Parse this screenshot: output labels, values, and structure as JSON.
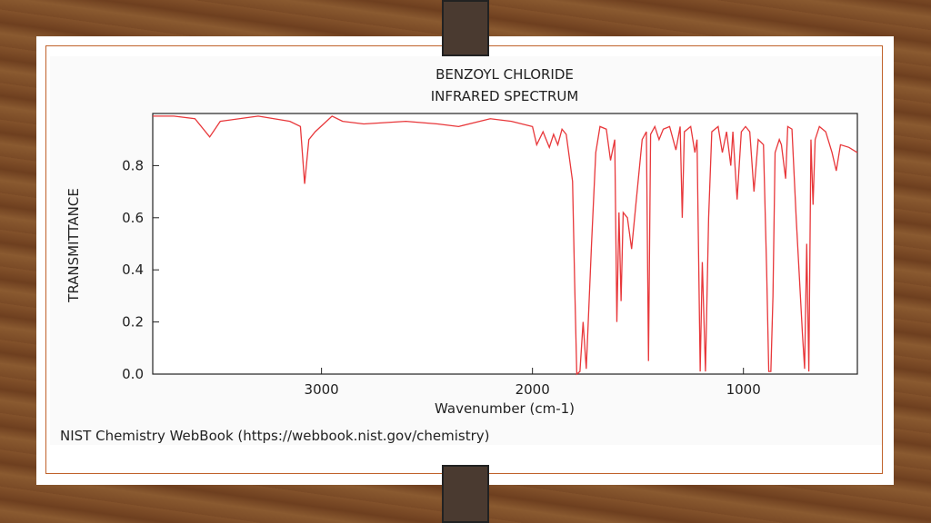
{
  "chart_data": {
    "type": "line",
    "title": "BENZOYL CHLORIDE",
    "subtitle": "INFRARED SPECTRUM",
    "x_label": "Wavenumber (cm-1)",
    "y_label": "TRANSMITTANCE",
    "caption": "NIST Chemistry WebBook (https://webbook.nist.gov/chemistry)",
    "xlim": [
      3800,
      460
    ],
    "ylim": [
      0,
      1.0
    ],
    "xticks": [
      3000,
      2000,
      1000
    ],
    "yticks": [
      {
        "value": 0,
        "label": "0.0"
      },
      0.2,
      0.4,
      0.6,
      0.8
    ],
    "x": [
      3800,
      3700,
      3600,
      3530,
      3480,
      3300,
      3150,
      3100,
      3080,
      3060,
      3030,
      2950,
      2900,
      2800,
      2600,
      2450,
      2350,
      2200,
      2100,
      2000,
      1980,
      1950,
      1920,
      1900,
      1880,
      1860,
      1840,
      1810,
      1800,
      1790,
      1775,
      1760,
      1745,
      1720,
      1700,
      1680,
      1650,
      1630,
      1610,
      1600,
      1590,
      1580,
      1570,
      1550,
      1530,
      1510,
      1480,
      1460,
      1450,
      1440,
      1420,
      1400,
      1380,
      1350,
      1320,
      1300,
      1290,
      1280,
      1250,
      1230,
      1220,
      1215,
      1205,
      1195,
      1180,
      1165,
      1150,
      1120,
      1100,
      1080,
      1060,
      1050,
      1030,
      1010,
      990,
      970,
      950,
      930,
      905,
      890,
      880,
      870,
      860,
      850,
      830,
      820,
      800,
      790,
      770,
      750,
      720,
      710,
      700,
      690,
      680,
      670,
      660,
      640,
      610,
      580,
      560,
      540,
      500,
      460
    ],
    "series": [
      {
        "name": "TRANSMITTANCE",
        "color": "#e8373a",
        "values": [
          0.99,
          0.99,
          0.98,
          0.91,
          0.97,
          0.99,
          0.97,
          0.95,
          0.73,
          0.9,
          0.93,
          0.99,
          0.97,
          0.96,
          0.97,
          0.96,
          0.95,
          0.98,
          0.97,
          0.95,
          0.88,
          0.93,
          0.87,
          0.92,
          0.88,
          0.94,
          0.92,
          0.74,
          0.35,
          0.0,
          0.01,
          0.2,
          0.02,
          0.5,
          0.85,
          0.95,
          0.94,
          0.82,
          0.9,
          0.2,
          0.62,
          0.28,
          0.62,
          0.6,
          0.48,
          0.65,
          0.9,
          0.93,
          0.05,
          0.92,
          0.95,
          0.9,
          0.94,
          0.95,
          0.86,
          0.95,
          0.6,
          0.93,
          0.95,
          0.85,
          0.9,
          0.6,
          0.01,
          0.43,
          0.01,
          0.6,
          0.93,
          0.95,
          0.85,
          0.93,
          0.8,
          0.93,
          0.67,
          0.93,
          0.95,
          0.93,
          0.7,
          0.9,
          0.88,
          0.4,
          0.01,
          0.01,
          0.3,
          0.85,
          0.9,
          0.88,
          0.75,
          0.95,
          0.94,
          0.6,
          0.15,
          0.02,
          0.5,
          0.01,
          0.9,
          0.65,
          0.9,
          0.95,
          0.93,
          0.85,
          0.78,
          0.88,
          0.87,
          0.85
        ]
      }
    ]
  }
}
